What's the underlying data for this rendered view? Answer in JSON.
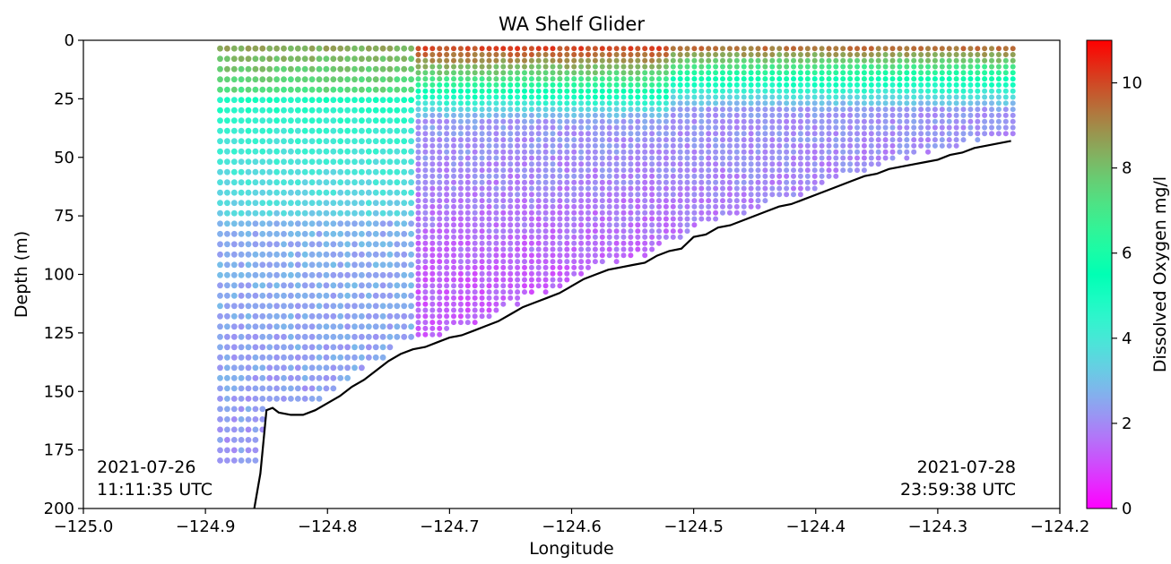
{
  "chart_data": {
    "type": "scatter",
    "title": "WA Shelf Glider",
    "xlabel": "Longitude",
    "ylabel": "Depth (m)",
    "xlim": [
      -125.0,
      -124.2
    ],
    "ylim": [
      200,
      0
    ],
    "x_ticks": [
      -125.0,
      -124.9,
      -124.8,
      -124.7,
      -124.6,
      -124.5,
      -124.4,
      -124.3,
      -124.2
    ],
    "x_tick_labels": [
      "−125.0",
      "−124.9",
      "−124.8",
      "−124.7",
      "−124.6",
      "−124.5",
      "−124.4",
      "−124.3",
      "−124.2"
    ],
    "y_ticks": [
      0,
      25,
      50,
      75,
      100,
      125,
      150,
      175,
      200
    ],
    "y_tick_labels": [
      "0",
      "25",
      "50",
      "75",
      "100",
      "125",
      "150",
      "175",
      "200"
    ],
    "colorbar": {
      "label": "Dissolved Oxygen mg/l",
      "range": [
        0,
        11
      ],
      "ticks": [
        0,
        2,
        4,
        6,
        8,
        10
      ],
      "tick_labels": [
        "0",
        "2",
        "4",
        "6",
        "8",
        "10"
      ],
      "colormap": "rainbow"
    },
    "annotations": {
      "start": {
        "line1": "2021-07-26",
        "line2": "11:11:35 UTC"
      },
      "end": {
        "line1": "2021-07-28",
        "line2": "23:59:38 UTC"
      }
    },
    "bathymetry": {
      "color": "#000000",
      "lon": [
        -124.86,
        -124.855,
        -124.85,
        -124.845,
        -124.84,
        -124.83,
        -124.82,
        -124.81,
        -124.8,
        -124.79,
        -124.78,
        -124.77,
        -124.76,
        -124.75,
        -124.74,
        -124.73,
        -124.72,
        -124.71,
        -124.7,
        -124.69,
        -124.68,
        -124.67,
        -124.66,
        -124.65,
        -124.64,
        -124.63,
        -124.62,
        -124.61,
        -124.6,
        -124.59,
        -124.58,
        -124.57,
        -124.56,
        -124.55,
        -124.54,
        -124.53,
        -124.52,
        -124.51,
        -124.5,
        -124.49,
        -124.48,
        -124.47,
        -124.46,
        -124.45,
        -124.44,
        -124.43,
        -124.42,
        -124.41,
        -124.4,
        -124.39,
        -124.38,
        -124.37,
        -124.36,
        -124.35,
        -124.34,
        -124.33,
        -124.32,
        -124.31,
        -124.3,
        -124.29,
        -124.28,
        -124.27,
        -124.26,
        -124.25,
        -124.24
      ],
      "depth": [
        200,
        185,
        158,
        157,
        159,
        160,
        160,
        158,
        155,
        152,
        148,
        145,
        141,
        137,
        134,
        132,
        131,
        129,
        127,
        126,
        124,
        122,
        120,
        117,
        114,
        112,
        110,
        108,
        105,
        102,
        100,
        98,
        97,
        96,
        95,
        92,
        90,
        89,
        84,
        83,
        80,
        79,
        77,
        75,
        73,
        71,
        70,
        68,
        66,
        64,
        62,
        60,
        58,
        57,
        55,
        54,
        53,
        52,
        51,
        49,
        48,
        46,
        45,
        44,
        43
      ]
    }
  }
}
